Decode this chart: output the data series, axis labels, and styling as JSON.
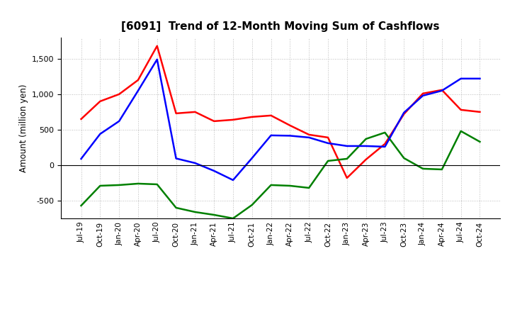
{
  "title": "[6091]  Trend of 12-Month Moving Sum of Cashflows",
  "ylabel": "Amount (million yen)",
  "background_color": "#ffffff",
  "grid_color": "#bbbbbb",
  "ylim": [
    -750,
    1800
  ],
  "yticks": [
    -500,
    0,
    500,
    1000,
    1500
  ],
  "x_labels": [
    "Jul-19",
    "Oct-19",
    "Jan-20",
    "Apr-20",
    "Jul-20",
    "Oct-20",
    "Jan-21",
    "Apr-21",
    "Jul-21",
    "Oct-21",
    "Jan-22",
    "Apr-22",
    "Jul-22",
    "Oct-22",
    "Jan-23",
    "Apr-23",
    "Jul-23",
    "Oct-23",
    "Jan-24",
    "Apr-24",
    "Jul-24",
    "Oct-24"
  ],
  "operating": [
    650,
    900,
    1000,
    1200,
    1680,
    730,
    750,
    620,
    640,
    680,
    700,
    560,
    430,
    390,
    -180,
    80,
    300,
    720,
    1010,
    1060,
    780,
    750
  ],
  "investing": [
    -570,
    -290,
    -280,
    -260,
    -270,
    -600,
    -660,
    -700,
    -750,
    -560,
    -280,
    -290,
    -320,
    60,
    90,
    370,
    460,
    100,
    -50,
    -60,
    480,
    330
  ],
  "free": [
    90,
    440,
    620,
    1050,
    1490,
    95,
    30,
    -80,
    -210,
    100,
    420,
    415,
    390,
    310,
    270,
    270,
    260,
    740,
    980,
    1050,
    1220,
    1220
  ],
  "op_color": "#ff0000",
  "inv_color": "#008000",
  "free_color": "#0000ff",
  "line_width": 1.8
}
